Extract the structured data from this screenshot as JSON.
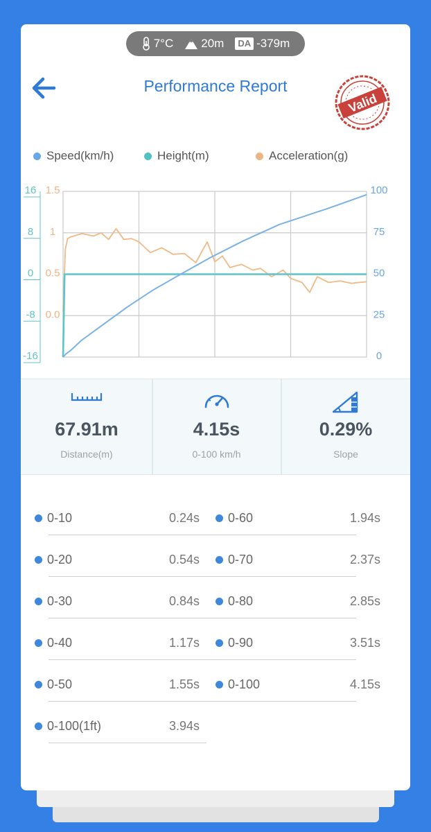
{
  "conditions": {
    "temperature": "7°C",
    "altitude": "20m",
    "da_badge": "DA",
    "density_altitude": "-379m"
  },
  "header": {
    "back_icon": "arrow-left-icon",
    "title": "Performance Report",
    "stamp_text": "Valid"
  },
  "colors": {
    "accent": "#2e7ad6",
    "background": "#3580e4",
    "speed": "#7ab2e6",
    "height": "#5ec4c8",
    "acceleration": "#f0b985"
  },
  "legend": {
    "speed": "Speed(km/h)",
    "height": "Height(m)",
    "acceleration": "Acceleration(g)"
  },
  "chart_data": {
    "type": "line",
    "grid": true,
    "x_range": [
      0,
      4
    ],
    "axes": {
      "height": {
        "ticks": [
          "16",
          "8",
          "0",
          "-8",
          "-16"
        ],
        "range": [
          -16,
          16
        ]
      },
      "acceleration": {
        "ticks": [
          "1.5",
          "1",
          "0.5",
          "0.0"
        ],
        "range": [
          -0.5,
          1.5
        ]
      },
      "speed": {
        "ticks": [
          "100",
          "75",
          "50",
          "25",
          "0"
        ],
        "range": [
          0,
          100
        ]
      }
    },
    "series": [
      {
        "name": "Speed(km/h)",
        "axis": "speed",
        "x": [
          0,
          0.04,
          0.1,
          0.24,
          0.54,
          0.84,
          1.17,
          1.55,
          1.94,
          2.37,
          2.85,
          3.51,
          4.0
        ],
        "values": [
          0,
          2,
          4,
          10,
          20,
          30,
          40,
          50,
          60,
          70,
          80,
          90,
          98
        ]
      },
      {
        "name": "Height(m)",
        "axis": "height",
        "x": [
          0,
          0.02,
          0.5,
          1.0,
          1.5,
          2.0,
          2.5,
          3.0,
          3.5,
          4.0
        ],
        "values": [
          -16,
          0,
          0,
          0,
          0,
          0,
          0,
          0,
          0,
          0
        ]
      },
      {
        "name": "Acceleration(g)",
        "axis": "acceleration",
        "x": [
          0,
          0.03,
          0.06,
          0.1,
          0.25,
          0.4,
          0.5,
          0.6,
          0.7,
          0.8,
          0.9,
          1.0,
          1.15,
          1.3,
          1.45,
          1.6,
          1.75,
          1.9,
          2.0,
          2.1,
          2.2,
          2.35,
          2.5,
          2.6,
          2.75,
          2.9,
          3.0,
          3.15,
          3.25,
          3.35,
          3.5,
          3.65,
          3.8,
          4.0
        ],
        "values": [
          0.05,
          0.8,
          0.93,
          0.95,
          0.99,
          0.96,
          1.0,
          0.92,
          1.05,
          0.92,
          0.93,
          0.89,
          0.76,
          0.82,
          0.74,
          0.75,
          0.64,
          0.89,
          0.65,
          0.72,
          0.58,
          0.62,
          0.55,
          0.57,
          0.47,
          0.55,
          0.45,
          0.4,
          0.28,
          0.47,
          0.4,
          0.42,
          0.39,
          0.41
        ]
      }
    ]
  },
  "stats": {
    "distance": {
      "value": "67.91m",
      "label": "Distance(m)",
      "icon": "ruler-icon"
    },
    "time": {
      "value": "4.15s",
      "label": "0-100 km/h",
      "icon": "speedometer-icon"
    },
    "slope": {
      "value": "0.29%",
      "label": "Slope",
      "icon": "slope-icon"
    }
  },
  "times_left": [
    {
      "label": "0-10",
      "value": "0.24s"
    },
    {
      "label": "0-20",
      "value": "0.54s"
    },
    {
      "label": "0-30",
      "value": "0.84s"
    },
    {
      "label": "0-40",
      "value": "1.17s"
    },
    {
      "label": "0-50",
      "value": "1.55s"
    },
    {
      "label": "0-100(1ft)",
      "value": "3.94s"
    }
  ],
  "times_right": [
    {
      "label": "0-60",
      "value": "1.94s"
    },
    {
      "label": "0-70",
      "value": "2.37s"
    },
    {
      "label": "0-80",
      "value": "2.85s"
    },
    {
      "label": "0-90",
      "value": "3.51s"
    },
    {
      "label": "0-100",
      "value": "4.15s"
    }
  ]
}
